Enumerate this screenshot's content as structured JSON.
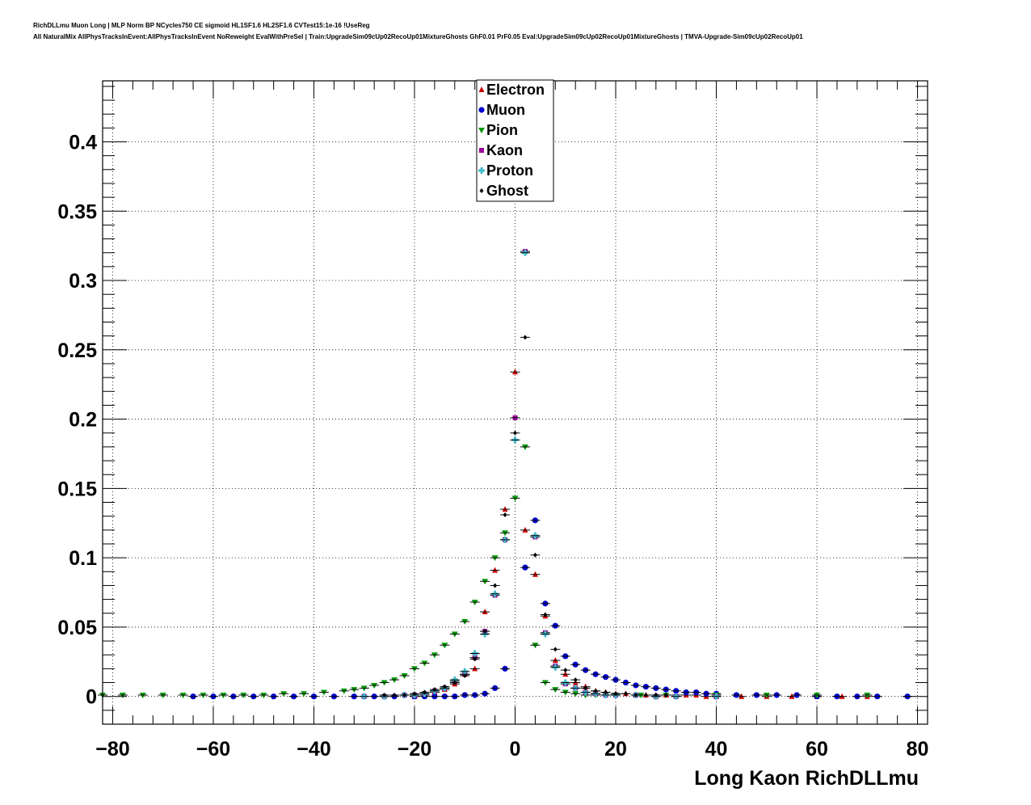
{
  "header": {
    "line1": "RichDLLmu Muon Long | MLP Norm BP NCycles750 CE sigmoid HL1SF1.6 HL2SF1.6 CVTest15:1e-16 !UseReg",
    "line2": "All NaturalMix AllPhysTracksInEvent:AllPhysTracksInEvent NoReweight EvalWithPreSel | Train:UpgradeSim09cUp02RecoUp01MixtureGhosts GhF0.01 PrF0.05 Eval:UpgradeSim09cUp02RecoUp01MixtureGhosts | TMVA-Upgrade-Sim09cUp02RecoUp01"
  },
  "chart_data": {
    "type": "scatter",
    "xlabel": "Long Kaon RichDLLmu",
    "ylabel": "",
    "xlim": [
      -82,
      82
    ],
    "ylim": [
      -0.02,
      0.444
    ],
    "xticks": [
      -80,
      -60,
      -40,
      -20,
      0,
      20,
      40,
      60,
      80
    ],
    "xtick_labels": [
      "−80",
      "−60",
      "−40",
      "−20",
      "0",
      "20",
      "40",
      "60",
      "80"
    ],
    "yticks": [
      0,
      0.05,
      0.1,
      0.15,
      0.2,
      0.25,
      0.3,
      0.35,
      0.4
    ],
    "ytick_labels": [
      "0",
      "0.05",
      "0.1",
      "0.15",
      "0.2",
      "0.25",
      "0.3",
      "0.35",
      "0.4"
    ],
    "grid": true,
    "legend_position": "top-center",
    "series": [
      {
        "name": "Electron",
        "color": "#cc0000",
        "marker": "triangle-up",
        "x": [
          -20,
          -18,
          -16,
          -14,
          -12,
          -10,
          -8,
          -6,
          -4,
          -2,
          0,
          2,
          4,
          6,
          8,
          10,
          12,
          14,
          16,
          18,
          20,
          22,
          24,
          26,
          28,
          30,
          32,
          34,
          36,
          38,
          40,
          45,
          50,
          55,
          60,
          65,
          70
        ],
        "y": [
          0.0,
          0.001,
          0.003,
          0.005,
          0.009,
          0.016,
          0.02,
          0.061,
          0.091,
          0.135,
          0.234,
          0.12,
          0.088,
          0.058,
          0.026,
          0.016,
          0.01,
          0.007,
          0.004,
          0.003,
          0.002,
          0.002,
          0.001,
          0.001,
          0.001,
          0.001,
          0.001,
          0.001,
          0.001,
          0.0,
          0.0,
          0.0,
          0.0,
          0.0,
          0.0,
          0.0,
          0.0
        ]
      },
      {
        "name": "Muon",
        "color": "#0000cc",
        "marker": "circle",
        "x": [
          -64,
          -60,
          -56,
          -52,
          -48,
          -44,
          -40,
          -36,
          -32,
          -28,
          -24,
          -20,
          -18,
          -16,
          -14,
          -12,
          -10,
          -8,
          -6,
          -4,
          -2,
          2,
          4,
          6,
          8,
          10,
          12,
          14,
          16,
          18,
          20,
          22,
          24,
          26,
          28,
          30,
          32,
          34,
          36,
          38,
          40,
          44,
          48,
          52,
          56,
          60,
          64,
          68,
          72,
          78
        ],
        "y": [
          0.0,
          0.0,
          0.0,
          0.0,
          0.0,
          0.0,
          0.0,
          0.0,
          0.0,
          0.0,
          0.0,
          0.0,
          0.0,
          0.0,
          0.0,
          0.0,
          0.001,
          0.001,
          0.002,
          0.006,
          0.02,
          0.093,
          0.127,
          0.067,
          0.051,
          0.029,
          0.023,
          0.019,
          0.016,
          0.014,
          0.012,
          0.01,
          0.008,
          0.007,
          0.006,
          0.005,
          0.004,
          0.003,
          0.003,
          0.002,
          0.002,
          0.001,
          0.001,
          0.001,
          0.001,
          0.0,
          0.0,
          0.0,
          0.0,
          0.0
        ]
      },
      {
        "name": "Pion",
        "color": "#009900",
        "marker": "triangle-down",
        "x": [
          -82,
          -78,
          -74,
          -70,
          -66,
          -62,
          -58,
          -54,
          -50,
          -46,
          -42,
          -38,
          -34,
          -32,
          -30,
          -28,
          -26,
          -24,
          -22,
          -20,
          -18,
          -16,
          -14,
          -12,
          -10,
          -8,
          -6,
          -4,
          -2,
          0,
          2,
          4,
          6,
          8,
          10,
          12,
          14,
          16,
          18,
          20,
          25,
          30,
          40,
          50,
          60,
          70
        ],
        "y": [
          0.001,
          0.001,
          0.001,
          0.001,
          0.001,
          0.001,
          0.001,
          0.001,
          0.001,
          0.002,
          0.002,
          0.003,
          0.004,
          0.005,
          0.006,
          0.008,
          0.01,
          0.012,
          0.015,
          0.02,
          0.024,
          0.03,
          0.037,
          0.045,
          0.054,
          0.068,
          0.083,
          0.1,
          0.118,
          0.143,
          0.18,
          0.037,
          0.01,
          0.005,
          0.003,
          0.002,
          0.001,
          0.001,
          0.001,
          0.001,
          0.001,
          0.001,
          0.001,
          0.001,
          0.001,
          0.001
        ]
      },
      {
        "name": "Kaon",
        "color": "#990099",
        "marker": "square",
        "x": [
          -30,
          -26,
          -22,
          -20,
          -18,
          -16,
          -14,
          -12,
          -10,
          -8,
          -6,
          -4,
          -2,
          0,
          2,
          4,
          6,
          8,
          10,
          12,
          14,
          16,
          18,
          20,
          24,
          28,
          32,
          40
        ],
        "y": [
          0.0,
          0.0,
          0.001,
          0.001,
          0.002,
          0.004,
          0.006,
          0.011,
          0.016,
          0.028,
          0.047,
          0.073,
          0.113,
          0.201,
          0.321,
          0.115,
          0.046,
          0.022,
          0.009,
          0.006,
          0.003,
          0.002,
          0.001,
          0.001,
          0.001,
          0.0,
          0.0,
          0.0
        ]
      },
      {
        "name": "Proton",
        "color": "#44bbcc",
        "marker": "cross",
        "x": [
          -30,
          -26,
          -22,
          -20,
          -18,
          -16,
          -14,
          -12,
          -10,
          -8,
          -6,
          -4,
          -2,
          0,
          2,
          4,
          6,
          8,
          10,
          12,
          14,
          16,
          18,
          20,
          24,
          28,
          32,
          40
        ],
        "y": [
          0.0,
          0.0,
          0.001,
          0.001,
          0.002,
          0.004,
          0.006,
          0.012,
          0.018,
          0.031,
          0.045,
          0.074,
          0.113,
          0.185,
          0.32,
          0.116,
          0.045,
          0.021,
          0.01,
          0.006,
          0.003,
          0.002,
          0.001,
          0.001,
          0.001,
          0.0,
          0.0,
          0.0
        ]
      },
      {
        "name": "Ghost",
        "color": "#000000",
        "marker": "diamond",
        "x": [
          -26,
          -24,
          -22,
          -20,
          -18,
          -16,
          -14,
          -12,
          -10,
          -8,
          -6,
          -4,
          -2,
          0,
          2,
          4,
          6,
          8,
          10,
          12,
          14,
          16,
          18,
          20,
          22,
          24,
          26,
          28,
          30
        ],
        "y": [
          0.001,
          0.001,
          0.001,
          0.002,
          0.003,
          0.005,
          0.007,
          0.01,
          0.015,
          0.027,
          0.047,
          0.08,
          0.131,
          0.19,
          0.259,
          0.102,
          0.059,
          0.034,
          0.019,
          0.012,
          0.006,
          0.004,
          0.003,
          0.002,
          0.002,
          0.001,
          0.001,
          0.001,
          0.001
        ]
      }
    ]
  }
}
